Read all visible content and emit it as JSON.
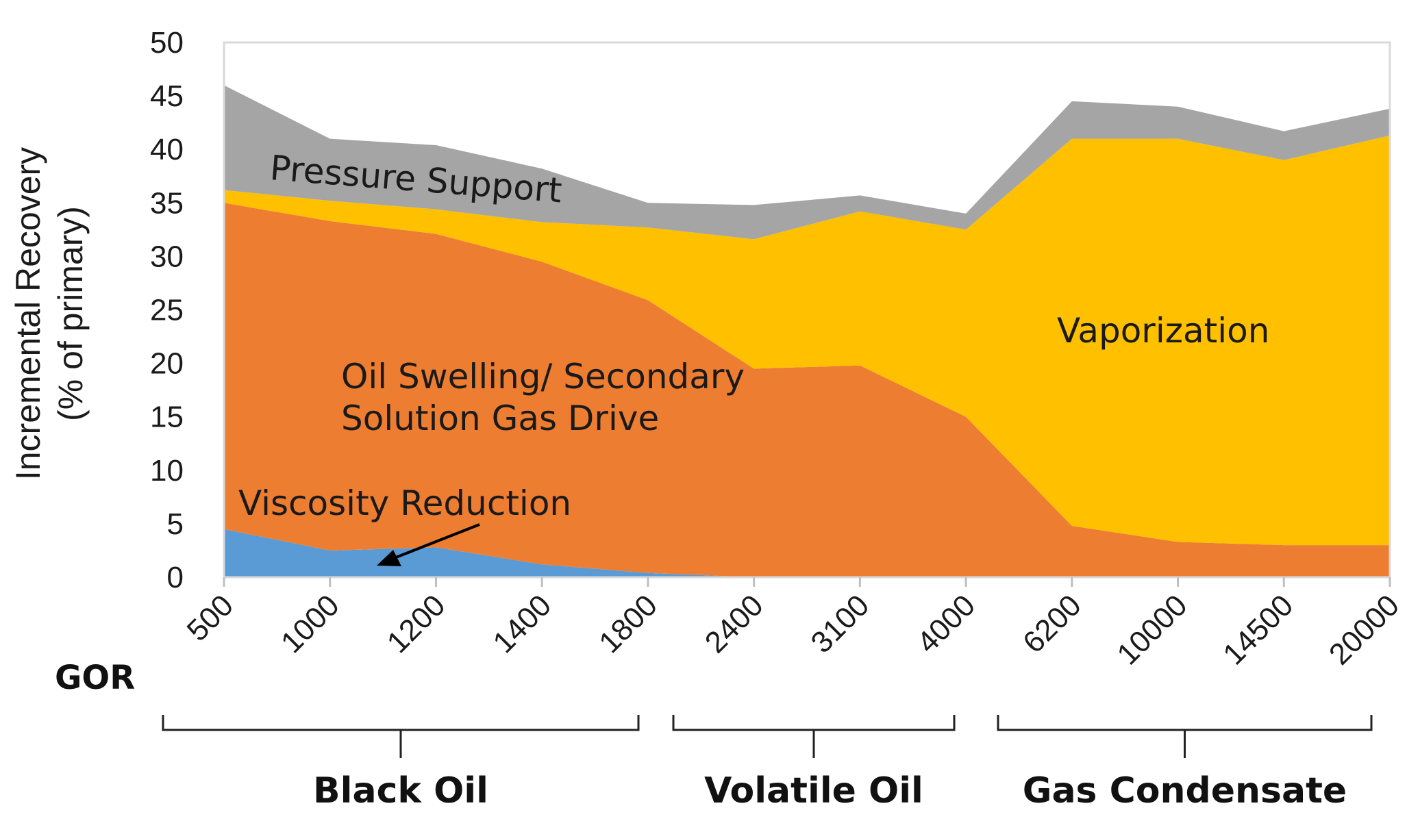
{
  "chart_data": {
    "type": "area",
    "stacked": true,
    "title": "",
    "xlabel": "GOR",
    "ylabel_line1": "Incremental Recovery",
    "ylabel_line2": "(% of primary)",
    "ylim": [
      0,
      50
    ],
    "yticks": [
      0,
      5,
      10,
      15,
      20,
      25,
      30,
      35,
      40,
      45,
      50
    ],
    "categories": [
      "500",
      "1000",
      "1200",
      "1400",
      "1800",
      "2400",
      "3100",
      "4000",
      "6200",
      "10000",
      "14500",
      "20000"
    ],
    "series": [
      {
        "name": "Viscosity Reduction",
        "color": "#5b9bd5",
        "values": [
          4.5,
          2.5,
          2.8,
          1.2,
          0.4,
          0,
          0,
          0,
          0,
          0,
          0,
          0
        ]
      },
      {
        "name": "Oil Swelling/ Secondary Solution Gas Drive",
        "color": "#ed7d31",
        "values": [
          30.5,
          30.8,
          29.3,
          28.3,
          25.5,
          19.5,
          19.8,
          15,
          4.8,
          3.3,
          3,
          3
        ]
      },
      {
        "name": "Vaporization",
        "color": "#ffc000",
        "values": [
          1.2,
          1.9,
          2.3,
          3.7,
          6.8,
          12.1,
          14.4,
          17.5,
          36.2,
          37.7,
          36,
          38.3
        ]
      },
      {
        "name": "Pressure Support",
        "color": "#a5a5a5",
        "values": [
          9.8,
          5.8,
          6,
          5,
          2.3,
          3.2,
          1.5,
          1.5,
          3.5,
          3,
          2.7,
          2.5
        ]
      }
    ],
    "annotations": {
      "pressure_support": "Pressure Support",
      "oil_swelling_line1": "Oil Swelling/ Secondary",
      "oil_swelling_line2": "Solution Gas Drive",
      "vaporization": "Vaporization",
      "viscosity_reduction": "Viscosity Reduction"
    },
    "groups": [
      {
        "label": "Black Oil",
        "from": 0,
        "to": 4
      },
      {
        "label": "Volatile Oil",
        "from": 5,
        "to": 7
      },
      {
        "label": "Gas Condensate",
        "from": 8,
        "to": 11
      }
    ],
    "gridlines": false
  }
}
